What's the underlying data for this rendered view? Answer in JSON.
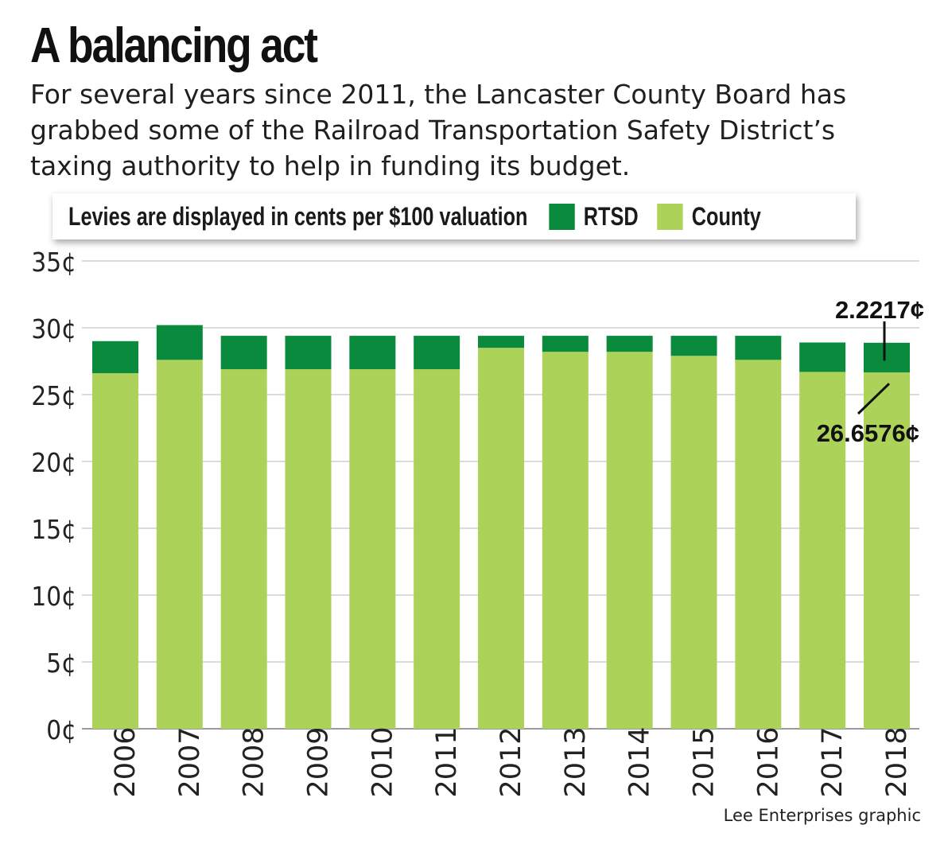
{
  "header": {
    "title": "A balancing act",
    "subtitle": "For several years since 2011, the Lancaster County Board has grabbed some of the Railroad Transportation Safety District’s taxing authority to help in funding its budget."
  },
  "legend": {
    "label": "Levies are displayed in cents per $100 valuation",
    "items": [
      {
        "name": "RTSD",
        "color": "#0a8a3c"
      },
      {
        "name": "County",
        "color": "#acd25a"
      }
    ]
  },
  "credit": "Lee Enterprises graphic",
  "chart_data": {
    "type": "bar",
    "stacked": true,
    "unit": "cents per $100 valuation",
    "categories": [
      "2006",
      "2007",
      "2008",
      "2009",
      "2010",
      "2011",
      "2012",
      "2013",
      "2014",
      "2015",
      "2016",
      "2017",
      "2018"
    ],
    "series": [
      {
        "name": "County",
        "color": "#acd25a",
        "values": [
          26.6,
          27.6,
          26.9,
          26.9,
          26.9,
          26.9,
          28.5,
          28.2,
          28.2,
          27.9,
          27.6,
          26.7,
          26.6576
        ]
      },
      {
        "name": "RTSD",
        "color": "#0a8a3c",
        "values": [
          2.4,
          2.6,
          2.5,
          2.5,
          2.5,
          2.5,
          0.9,
          1.2,
          1.2,
          1.5,
          1.8,
          2.2,
          2.2217
        ]
      }
    ],
    "y_ticks": [
      "0¢",
      "5¢",
      "10¢",
      "15¢",
      "20¢",
      "25¢",
      "30¢",
      "35¢"
    ],
    "ylim": [
      0,
      35
    ],
    "grid": true,
    "annotations": [
      {
        "text": "2.2217¢",
        "series": "RTSD",
        "category": "2018"
      },
      {
        "text": "26.6576¢",
        "series": "County",
        "category": "2018"
      }
    ]
  }
}
